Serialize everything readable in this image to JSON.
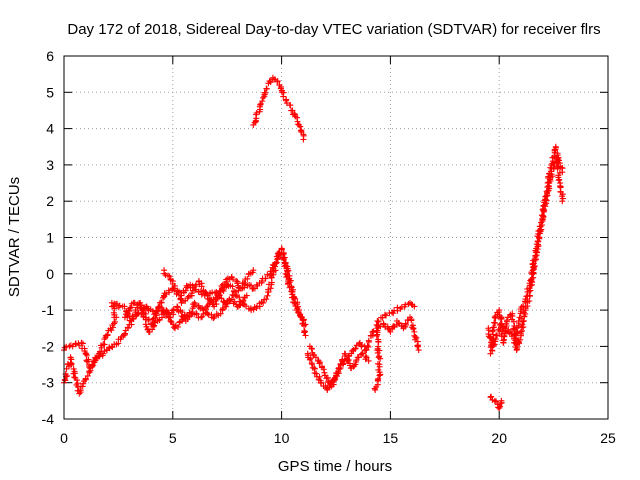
{
  "chart_data": {
    "type": "scatter",
    "title": "Day 172 of 2018, Sidereal Day-to-day VTEC variation (SDTVAR) for receiver flrs",
    "xlabel": "GPS time / hours",
    "ylabel": "SDTVAR / TECUs",
    "xlim": [
      0,
      25
    ],
    "ylim": [
      -4,
      6
    ],
    "xticks": [
      0,
      5,
      10,
      15,
      20,
      25
    ],
    "yticks": [
      -4,
      -3,
      -2,
      -1,
      0,
      1,
      2,
      3,
      4,
      5,
      6
    ],
    "grid": true,
    "marker": "+",
    "color": "#ff0000",
    "series": [
      {
        "name": "flrs",
        "segments": [
          [
            [
              0.0,
              -3.0
            ],
            [
              0.3,
              -2.3
            ],
            [
              0.7,
              -3.3
            ],
            [
              1.0,
              -2.9
            ],
            [
              1.4,
              -2.4
            ],
            [
              1.8,
              -2.2
            ],
            [
              2.2,
              -2.0
            ],
            [
              2.6,
              -1.8
            ],
            [
              3.0,
              -1.4
            ],
            [
              3.4,
              -1.1
            ],
            [
              3.8,
              -0.9
            ],
            [
              4.2,
              -1.1
            ],
            [
              4.6,
              -0.6
            ],
            [
              5.0,
              -0.4
            ],
            [
              5.4,
              -0.6
            ],
            [
              5.8,
              -0.3
            ],
            [
              6.2,
              -0.5
            ],
            [
              6.6,
              -0.6
            ],
            [
              7.0,
              -0.5
            ],
            [
              7.4,
              -0.8
            ],
            [
              7.8,
              -0.6
            ],
            [
              8.2,
              -0.8
            ],
            [
              8.6,
              -1.0
            ],
            [
              9.0,
              -0.9
            ],
            [
              9.4,
              -0.5
            ],
            [
              9.7,
              0.2
            ],
            [
              9.9,
              0.6
            ],
            [
              10.1,
              0.4
            ],
            [
              10.3,
              -0.2
            ],
            [
              10.6,
              -0.8
            ],
            [
              10.9,
              -1.2
            ],
            [
              11.1,
              -1.7
            ]
          ],
          [
            [
              0.0,
              -2.1
            ],
            [
              0.4,
              -2.0
            ],
            [
              0.8,
              -1.9
            ],
            [
              1.2,
              -2.6
            ],
            [
              1.6,
              -2.2
            ],
            [
              2.0,
              -1.7
            ],
            [
              2.4,
              -1.2
            ],
            [
              2.2,
              -0.8
            ],
            [
              2.7,
              -0.9
            ],
            [
              3.1,
              -1.3
            ],
            [
              3.5,
              -0.8
            ],
            [
              3.9,
              -1.6
            ],
            [
              4.3,
              -1.3
            ],
            [
              4.7,
              -1.0
            ],
            [
              5.1,
              -1.5
            ],
            [
              5.5,
              -1.2
            ],
            [
              5.9,
              -1.1
            ],
            [
              6.3,
              -1.2
            ],
            [
              6.7,
              -0.8
            ],
            [
              7.1,
              -0.6
            ],
            [
              7.5,
              -0.3
            ],
            [
              7.9,
              -0.5
            ],
            [
              8.3,
              -0.3
            ],
            [
              8.7,
              -0.4
            ],
            [
              9.1,
              -0.2
            ],
            [
              9.5,
              0.0
            ],
            [
              9.8,
              0.4
            ],
            [
              10.0,
              0.7
            ],
            [
              10.2,
              0.3
            ],
            [
              10.5,
              -0.5
            ],
            [
              10.8,
              -1.0
            ],
            [
              11.1,
              -1.4
            ]
          ],
          [
            [
              4.6,
              0.1
            ],
            [
              5.0,
              -0.2
            ],
            [
              5.4,
              -0.8
            ],
            [
              5.8,
              -0.6
            ],
            [
              6.2,
              -0.2
            ],
            [
              6.5,
              -0.5
            ],
            [
              6.9,
              -0.9
            ],
            [
              7.3,
              -0.3
            ],
            [
              7.7,
              -0.1
            ],
            [
              8.1,
              -0.4
            ],
            [
              8.5,
              0.0
            ],
            [
              8.7,
              0.1
            ]
          ],
          [
            [
              8.7,
              4.1
            ],
            [
              9.0,
              4.6
            ],
            [
              9.3,
              5.1
            ],
            [
              9.6,
              5.4
            ],
            [
              9.9,
              5.2
            ],
            [
              10.2,
              4.8
            ],
            [
              10.5,
              4.5
            ],
            [
              10.8,
              4.1
            ],
            [
              11.0,
              3.7
            ]
          ],
          [
            [
              11.2,
              -2.2
            ],
            [
              11.5,
              -2.6
            ],
            [
              11.8,
              -3.0
            ],
            [
              12.1,
              -3.2
            ],
            [
              12.4,
              -2.9
            ],
            [
              12.7,
              -2.6
            ],
            [
              13.0,
              -2.4
            ],
            [
              13.3,
              -2.1
            ],
            [
              13.6,
              -1.9
            ],
            [
              13.9,
              -2.1
            ],
            [
              14.1,
              -1.7
            ],
            [
              14.4,
              -1.5
            ],
            [
              14.7,
              -1.4
            ],
            [
              15.0,
              -1.6
            ],
            [
              15.3,
              -1.3
            ],
            [
              15.6,
              -1.5
            ],
            [
              15.9,
              -1.2
            ],
            [
              16.1,
              -1.6
            ],
            [
              16.3,
              -2.1
            ]
          ],
          [
            [
              11.3,
              -2.0
            ],
            [
              11.7,
              -2.4
            ],
            [
              12.0,
              -2.8
            ],
            [
              12.3,
              -3.1
            ],
            [
              12.6,
              -2.7
            ],
            [
              12.9,
              -2.2
            ],
            [
              13.2,
              -2.6
            ],
            [
              13.5,
              -2.3
            ],
            [
              13.7,
              -2.2
            ],
            [
              14.0,
              -2.4
            ]
          ],
          [
            [
              14.3,
              -3.2
            ],
            [
              14.5,
              -2.8
            ],
            [
              14.4,
              -1.3
            ],
            [
              15.9,
              -0.8
            ],
            [
              16.1,
              -0.9
            ]
          ],
          [
            [
              19.5,
              -1.5
            ],
            [
              19.7,
              -2.0
            ],
            [
              19.9,
              -1.7
            ],
            [
              20.1,
              -1.4
            ],
            [
              20.3,
              -1.5
            ],
            [
              20.5,
              -1.6
            ],
            [
              20.7,
              -1.9
            ],
            [
              20.9,
              -1.3
            ],
            [
              21.1,
              -0.9
            ],
            [
              21.3,
              -0.5
            ],
            [
              21.5,
              0.0
            ],
            [
              21.7,
              0.7
            ],
            [
              21.9,
              1.3
            ],
            [
              22.1,
              1.9
            ],
            [
              22.3,
              2.5
            ],
            [
              22.5,
              2.9
            ],
            [
              22.7,
              3.2
            ],
            [
              22.9,
              2.8
            ]
          ],
          [
            [
              19.6,
              -2.2
            ],
            [
              19.8,
              -1.2
            ],
            [
              20.0,
              -1.0
            ],
            [
              20.2,
              -1.9
            ],
            [
              20.4,
              -1.2
            ],
            [
              20.6,
              -1.1
            ],
            [
              20.8,
              -2.1
            ],
            [
              21.0,
              -1.6
            ],
            [
              21.2,
              -1.0
            ],
            [
              21.4,
              -0.6
            ],
            [
              21.6,
              0.2
            ],
            [
              21.8,
              0.9
            ],
            [
              22.0,
              1.6
            ],
            [
              22.2,
              2.2
            ],
            [
              22.4,
              3.0
            ],
            [
              22.6,
              3.5
            ],
            [
              22.8,
              2.5
            ],
            [
              22.9,
              2.0
            ]
          ],
          [
            [
              19.6,
              -3.4
            ],
            [
              19.8,
              -3.5
            ],
            [
              20.0,
              -3.7
            ],
            [
              20.1,
              -3.5
            ]
          ],
          [
            [
              2.8,
              -1.2
            ],
            [
              3.2,
              -0.8
            ],
            [
              3.6,
              -1.0
            ],
            [
              4.0,
              -1.4
            ],
            [
              4.4,
              -0.9
            ],
            [
              4.8,
              -1.2
            ],
            [
              5.2,
              -0.9
            ],
            [
              5.6,
              -1.3
            ],
            [
              6.0,
              -0.8
            ],
            [
              6.4,
              -1.0
            ],
            [
              6.8,
              -1.2
            ],
            [
              7.2,
              -1.1
            ],
            [
              7.6,
              -0.7
            ],
            [
              8.0,
              -0.9
            ],
            [
              8.4,
              -0.6
            ]
          ]
        ]
      }
    ]
  }
}
